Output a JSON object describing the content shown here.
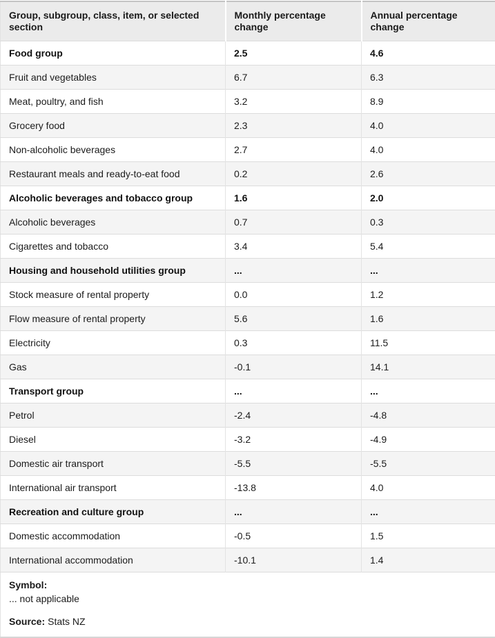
{
  "chart_data": {
    "type": "table",
    "columns": [
      "Group, subgroup, class, item, or selected section",
      "Monthly percentage change",
      "Annual percentage change"
    ],
    "rows": [
      {
        "label": "Food group",
        "monthly": "2.5",
        "annual": "4.6",
        "is_group": true
      },
      {
        "label": "Fruit and vegetables",
        "monthly": "6.7",
        "annual": "6.3",
        "is_group": false
      },
      {
        "label": "Meat, poultry, and fish",
        "monthly": "3.2",
        "annual": "8.9",
        "is_group": false
      },
      {
        "label": "Grocery food",
        "monthly": "2.3",
        "annual": "4.0",
        "is_group": false
      },
      {
        "label": "Non-alcoholic beverages",
        "monthly": "2.7",
        "annual": "4.0",
        "is_group": false
      },
      {
        "label": "Restaurant meals and ready-to-eat food",
        "monthly": "0.2",
        "annual": "2.6",
        "is_group": false
      },
      {
        "label": "Alcoholic beverages and tobacco group",
        "monthly": "1.6",
        "annual": "2.0",
        "is_group": true
      },
      {
        "label": "Alcoholic beverages",
        "monthly": "0.7",
        "annual": "0.3",
        "is_group": false
      },
      {
        "label": "Cigarettes and tobacco",
        "monthly": "3.4",
        "annual": "5.4",
        "is_group": false
      },
      {
        "label": "Housing and household utilities group",
        "monthly": "...",
        "annual": "...",
        "is_group": true
      },
      {
        "label": "Stock measure of rental property",
        "monthly": "0.0",
        "annual": "1.2",
        "is_group": false
      },
      {
        "label": "Flow measure of rental property",
        "monthly": "5.6",
        "annual": "1.6",
        "is_group": false
      },
      {
        "label": "Electricity",
        "monthly": "0.3",
        "annual": "11.5",
        "is_group": false
      },
      {
        "label": "Gas",
        "monthly": "-0.1",
        "annual": "14.1",
        "is_group": false
      },
      {
        "label": "Transport group",
        "monthly": "...",
        "annual": "...",
        "is_group": true
      },
      {
        "label": "Petrol",
        "monthly": "-2.4",
        "annual": "-4.8",
        "is_group": false
      },
      {
        "label": "Diesel",
        "monthly": "-3.2",
        "annual": "-4.9",
        "is_group": false
      },
      {
        "label": "Domestic air transport",
        "monthly": "-5.5",
        "annual": "-5.5",
        "is_group": false
      },
      {
        "label": "International air transport",
        "monthly": "-13.8",
        "annual": "4.0",
        "is_group": false
      },
      {
        "label": "Recreation and culture group",
        "monthly": "...",
        "annual": "...",
        "is_group": true
      },
      {
        "label": "Domestic accommodation",
        "monthly": "-0.5",
        "annual": "1.5",
        "is_group": false
      },
      {
        "label": "International accommodation",
        "monthly": "-10.1",
        "annual": "1.4",
        "is_group": false
      }
    ],
    "footnotes": {
      "symbol_heading": "Symbol:",
      "symbol_note": "... not applicable",
      "source_label": "Source:",
      "source_value": "Stats NZ"
    }
  },
  "colors": {
    "header_bg": "#ebebeb",
    "alt_row_bg": "#f4f4f4",
    "row_border": "#dcdcdc",
    "top_border": "#c3c3c3",
    "text": "#1b1b1b"
  }
}
